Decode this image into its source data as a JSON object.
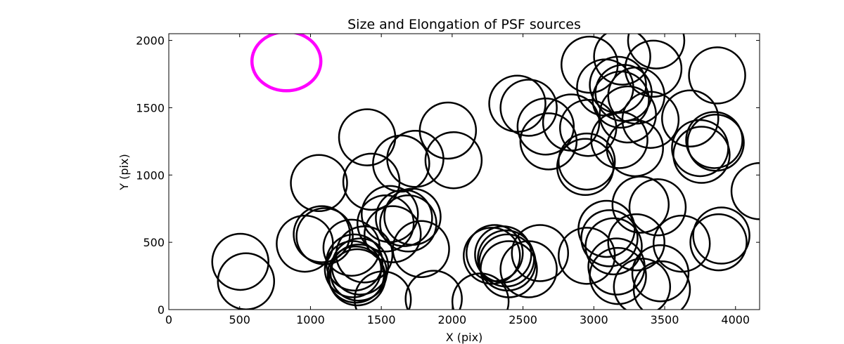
{
  "chart_data": {
    "type": "scatter",
    "title": "Size and Elongation of PSF sources",
    "xlabel": "X (pix)",
    "ylabel": "Y (pix)",
    "xlim": [
      0,
      4170
    ],
    "ylim": [
      0,
      2050
    ],
    "x_ticks": [
      0,
      500,
      1000,
      1500,
      2000,
      2500,
      3000,
      3500,
      4000
    ],
    "y_ticks": [
      0,
      500,
      1000,
      1500,
      2000
    ],
    "grid": false,
    "marker": "ellipse-outline",
    "reference_marker": {
      "x": 830,
      "y": 1845,
      "color": "#ff00ff"
    },
    "sources": [
      {
        "x": 505,
        "y": 355
      },
      {
        "x": 545,
        "y": 210
      },
      {
        "x": 960,
        "y": 490
      },
      {
        "x": 1060,
        "y": 940
      },
      {
        "x": 1080,
        "y": 560
      },
      {
        "x": 1100,
        "y": 545
      },
      {
        "x": 1290,
        "y": 460
      },
      {
        "x": 1300,
        "y": 300
      },
      {
        "x": 1310,
        "y": 350
      },
      {
        "x": 1320,
        "y": 260
      },
      {
        "x": 1330,
        "y": 240
      },
      {
        "x": 1340,
        "y": 275
      },
      {
        "x": 1350,
        "y": 320
      },
      {
        "x": 1380,
        "y": 410
      },
      {
        "x": 1400,
        "y": 1280
      },
      {
        "x": 1430,
        "y": 950
      },
      {
        "x": 1510,
        "y": 75
      },
      {
        "x": 1530,
        "y": 640
      },
      {
        "x": 1560,
        "y": 710
      },
      {
        "x": 1580,
        "y": 560
      },
      {
        "x": 1640,
        "y": 1085
      },
      {
        "x": 1660,
        "y": 680
      },
      {
        "x": 1690,
        "y": 640
      },
      {
        "x": 1720,
        "y": 690
      },
      {
        "x": 1740,
        "y": 1120
      },
      {
        "x": 1780,
        "y": 450
      },
      {
        "x": 1870,
        "y": 80
      },
      {
        "x": 1970,
        "y": 1330
      },
      {
        "x": 2010,
        "y": 1110
      },
      {
        "x": 2200,
        "y": 60
      },
      {
        "x": 2280,
        "y": 400
      },
      {
        "x": 2300,
        "y": 420
      },
      {
        "x": 2360,
        "y": 410
      },
      {
        "x": 2380,
        "y": 380
      },
      {
        "x": 2390,
        "y": 350
      },
      {
        "x": 2400,
        "y": 300
      },
      {
        "x": 2460,
        "y": 1530
      },
      {
        "x": 2540,
        "y": 1500
      },
      {
        "x": 2540,
        "y": 300
      },
      {
        "x": 2620,
        "y": 420
      },
      {
        "x": 2660,
        "y": 1360
      },
      {
        "x": 2680,
        "y": 1250
      },
      {
        "x": 2840,
        "y": 1390
      },
      {
        "x": 2940,
        "y": 1060
      },
      {
        "x": 2950,
        "y": 1100
      },
      {
        "x": 2950,
        "y": 400
      },
      {
        "x": 2960,
        "y": 1350
      },
      {
        "x": 2970,
        "y": 1820
      },
      {
        "x": 3080,
        "y": 1650
      },
      {
        "x": 3090,
        "y": 600
      },
      {
        "x": 3110,
        "y": 530
      },
      {
        "x": 3140,
        "y": 470
      },
      {
        "x": 3160,
        "y": 320
      },
      {
        "x": 3170,
        "y": 1670
      },
      {
        "x": 3170,
        "y": 250
      },
      {
        "x": 3180,
        "y": 1260
      },
      {
        "x": 3190,
        "y": 1560
      },
      {
        "x": 3200,
        "y": 1880
      },
      {
        "x": 3210,
        "y": 1610
      },
      {
        "x": 3240,
        "y": 1450
      },
      {
        "x": 3290,
        "y": 1200
      },
      {
        "x": 3300,
        "y": 1590
      },
      {
        "x": 3300,
        "y": 500
      },
      {
        "x": 3330,
        "y": 780
      },
      {
        "x": 3340,
        "y": 170
      },
      {
        "x": 3400,
        "y": 1410
      },
      {
        "x": 3420,
        "y": 1790
      },
      {
        "x": 3440,
        "y": 2000
      },
      {
        "x": 3450,
        "y": 760
      },
      {
        "x": 3470,
        "y": 270
      },
      {
        "x": 3480,
        "y": 150
      },
      {
        "x": 3620,
        "y": 490
      },
      {
        "x": 3680,
        "y": 1420
      },
      {
        "x": 3750,
        "y": 1200
      },
      {
        "x": 3760,
        "y": 1150
      },
      {
        "x": 3850,
        "y": 1260
      },
      {
        "x": 3860,
        "y": 1240
      },
      {
        "x": 3870,
        "y": 1740
      },
      {
        "x": 3880,
        "y": 500
      },
      {
        "x": 3900,
        "y": 550
      },
      {
        "x": 4170,
        "y": 880
      }
    ]
  }
}
